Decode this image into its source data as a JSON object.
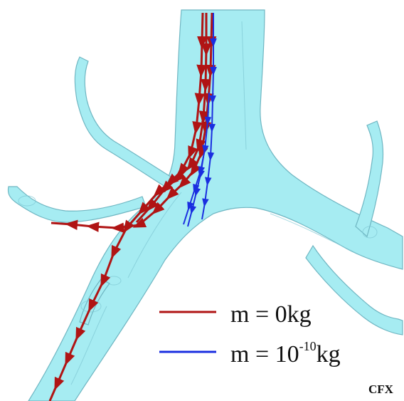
{
  "colors": {
    "background": "#ffffff",
    "airway_fill": "#a6ecf2",
    "airway_edge": "#6fb6c2",
    "airway_dark": "#84c6d2",
    "trajectory_massless": "#b01414",
    "trajectory_massive": "#1a2ee0"
  },
  "legend": {
    "items": [
      {
        "line_color": "#b01414",
        "label": "m = 0kg",
        "label_main": "m = 0kg",
        "label_exp": ""
      },
      {
        "line_color": "#1a2ee0",
        "label": "m = 10-10kg",
        "label_main": "m = 10",
        "label_exp": "-10",
        "label_unit": "kg"
      }
    ]
  },
  "credit": "CFX"
}
